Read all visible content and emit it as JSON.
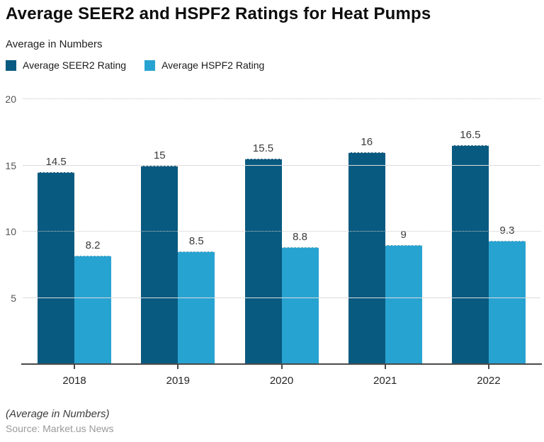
{
  "header": {
    "title": "Average SEER2 and HSPF2 Ratings for Heat Pumps",
    "subtitle": "Average in Numbers"
  },
  "chart_data": {
    "type": "bar",
    "title": "Average SEER2 and HSPF2 Ratings for Heat Pumps",
    "subtitle": "Average in Numbers",
    "categories": [
      "2018",
      "2019",
      "2020",
      "2021",
      "2022"
    ],
    "series": [
      {
        "name": "Average SEER2 Rating",
        "color": "#095a80",
        "values": [
          14.5,
          15,
          15.5,
          16,
          16.5
        ]
      },
      {
        "name": "Average HSPF2 Rating",
        "color": "#27a3d1",
        "values": [
          8.2,
          8.5,
          8.8,
          9,
          9.3
        ]
      }
    ],
    "xlabel": "",
    "ylabel": "",
    "ylim": [
      0,
      20
    ],
    "yticks": [
      5,
      10,
      15,
      20
    ],
    "grid": true,
    "legend_position": "top-left"
  },
  "footer": {
    "note": "(Average in Numbers)",
    "source": "Source: Market.us News"
  }
}
